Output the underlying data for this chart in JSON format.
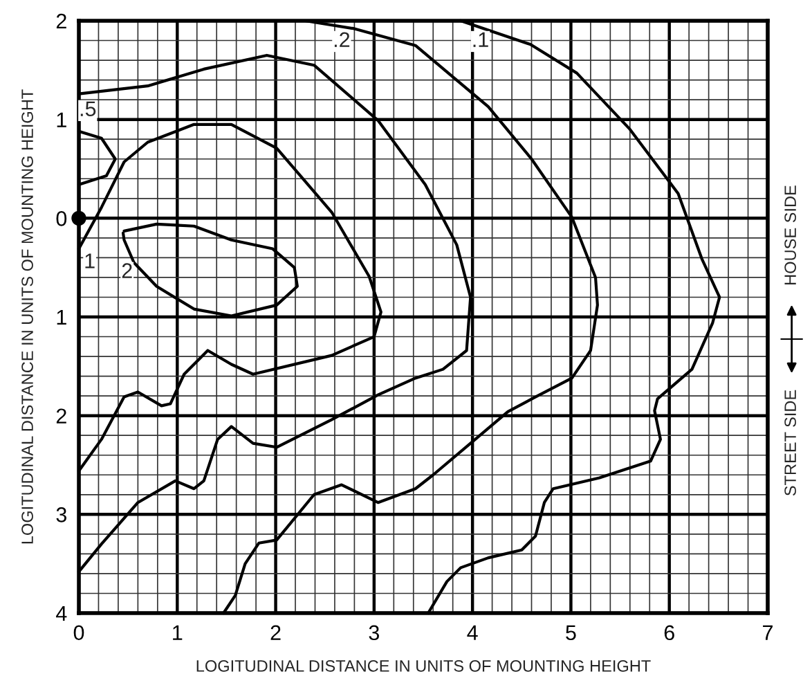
{
  "chart_data": {
    "type": "line",
    "xlabel": "LOGITUDINAL DISTANCE IN UNITS OF MOUNTING HEIGHT",
    "ylabel": "LOGITUDINAL DISTANCE IN UNITS OF MOUNTING HEIGHT",
    "xlim": [
      0,
      7
    ],
    "xticks": [
      0,
      1,
      2,
      3,
      4,
      5,
      6,
      7
    ],
    "ylim": [
      -4,
      2
    ],
    "yticks": [
      2,
      1,
      0,
      {
        "value": -1,
        "label": "1"
      },
      {
        "value": -2,
        "label": "2"
      },
      {
        "value": -3,
        "label": "3"
      },
      {
        "value": -4,
        "label": "4"
      }
    ],
    "grid": true,
    "marker": "none",
    "line_style": "solid",
    "series": [
      {
        "color": "#000000",
        "x": [
          3.88,
          4.59,
          5.06,
          5.6,
          6.09,
          6.33,
          6.51,
          6.44,
          6.23,
          5.88,
          5.85,
          5.91,
          5.81,
          5.29,
          4.82,
          4.73,
          4.64,
          4.5,
          4.16,
          3.88,
          3.74,
          3.55
        ],
        "values": [
          2,
          1.76,
          1.47,
          0.9,
          0.25,
          -0.41,
          -0.8,
          -1.06,
          -1.53,
          -1.83,
          -1.95,
          -2.24,
          -2.46,
          -2.63,
          -2.74,
          -2.88,
          -3.22,
          -3.36,
          -3.44,
          -3.54,
          -3.68,
          -4
        ]
      },
      {
        "color": "#000000",
        "x": [
          2.3,
          2.8,
          3.42,
          4.16,
          4.6,
          5.01,
          5.25,
          5.27,
          5.2,
          5.01,
          4.64,
          4.36,
          3.98,
          3.6,
          3.42,
          3.04,
          2.67,
          2.39,
          2.01,
          1.83,
          1.69,
          1.59,
          1.47
        ],
        "values": [
          2,
          1.92,
          1.75,
          1.13,
          0.6,
          0.01,
          -0.6,
          -0.88,
          -1.34,
          -1.62,
          -1.81,
          -1.96,
          -2.28,
          -2.6,
          -2.74,
          -2.88,
          -2.7,
          -2.8,
          -3.26,
          -3.29,
          -3.5,
          -3.82,
          -4
        ]
      },
      {
        "color": "#000000",
        "x": [
          0,
          0.7,
          1.27,
          1.91,
          2.39,
          3.04,
          3.52,
          3.84,
          3.98,
          3.94,
          3.7,
          3.42,
          3.04,
          2.57,
          2.01,
          1.77,
          1.55,
          1.41,
          1.27,
          1.17,
          0.98,
          0.6,
          0.23,
          0
        ],
        "values": [
          1.26,
          1.34,
          1.51,
          1.65,
          1.55,
          0.99,
          0.34,
          -0.27,
          -0.8,
          -1.34,
          -1.53,
          -1.62,
          -1.79,
          -2.04,
          -2.32,
          -2.28,
          -2.11,
          -2.24,
          -2.66,
          -2.74,
          -2.66,
          -2.88,
          -3.3,
          -3.58
        ]
      },
      {
        "color": "#000000",
        "x": [
          0,
          0.23,
          0.46,
          0.7,
          1.17,
          1.55,
          2.01,
          2.57,
          2.95,
          3.07,
          3.0,
          2.57,
          1.77,
          1.55,
          1.31,
          1.07,
          0.93,
          0.84,
          0.6,
          0.46,
          0.23,
          0
        ],
        "values": [
          -0.31,
          0.11,
          0.57,
          0.77,
          0.95,
          0.95,
          0.71,
          0.06,
          -0.59,
          -0.95,
          -1.2,
          -1.39,
          -1.58,
          -1.48,
          -1.34,
          -1.58,
          -1.88,
          -1.9,
          -1.76,
          -1.81,
          -2.24,
          -2.56
        ]
      },
      {
        "color": "#000000",
        "x": [
          0.46,
          0.79,
          1.17,
          1.55,
          1.97,
          2.19,
          2.22,
          2.01,
          1.55,
          1.17,
          0.79,
          0.56,
          0.46,
          0.45
        ],
        "values": [
          -0.13,
          -0.06,
          -0.08,
          -0.22,
          -0.31,
          -0.5,
          -0.69,
          -0.88,
          -0.99,
          -0.92,
          -0.69,
          -0.45,
          -0.22,
          -0.15
        ]
      },
      {
        "color": "#000000",
        "x": [
          0,
          0.23,
          0.37,
          0.28,
          0
        ],
        "values": [
          0.88,
          0.81,
          0.6,
          0.43,
          0.34
        ]
      },
      {
        "type": "scatter",
        "marker": "circle",
        "color": "#000000",
        "x": [
          0
        ],
        "values": [
          0
        ]
      }
    ],
    "annotations": [
      {
        "text": ".1",
        "x": 4.08,
        "y": 1.79
      },
      {
        "text": ".2",
        "x": 2.67,
        "y": 1.79
      },
      {
        "text": ".5",
        "x": 0.09,
        "y": 1.09
      },
      {
        "text": "1",
        "x": 0.11,
        "y": -0.45
      },
      {
        "text": "2",
        "x": 0.49,
        "y": -0.55
      },
      "HOUSE SIDE",
      "STREET SIDE"
    ]
  }
}
